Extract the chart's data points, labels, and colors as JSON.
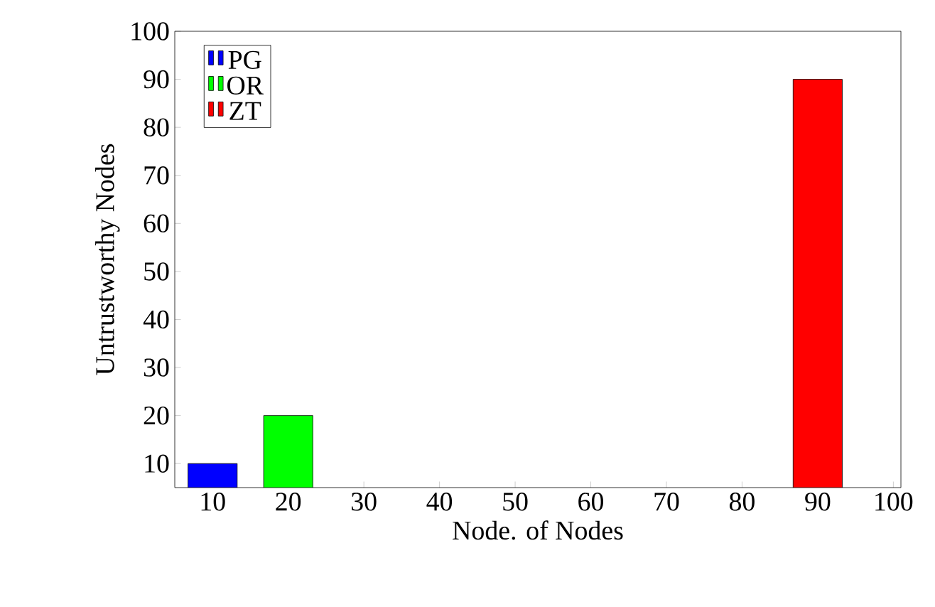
{
  "chart_data": {
    "type": "bar",
    "xlabel": "Node. of Nodes",
    "ylabel": "Untrustworthy Nodes",
    "xlim": [
      5,
      101
    ],
    "ylim": [
      5,
      100
    ],
    "xticks": [
      10,
      20,
      30,
      40,
      50,
      60,
      70,
      80,
      90,
      100
    ],
    "yticks": [
      10,
      20,
      30,
      40,
      50,
      60,
      70,
      80,
      90,
      100
    ],
    "legend": "top left",
    "series": [
      {
        "name": "PG",
        "color": "#0000ff",
        "x": [
          10
        ],
        "values": [
          10
        ]
      },
      {
        "name": "OR",
        "color": "#00ff00",
        "x": [
          20
        ],
        "values": [
          20
        ]
      },
      {
        "name": "ZT",
        "color": "#ff0000",
        "x": [
          90
        ],
        "values": [
          90
        ]
      }
    ]
  }
}
